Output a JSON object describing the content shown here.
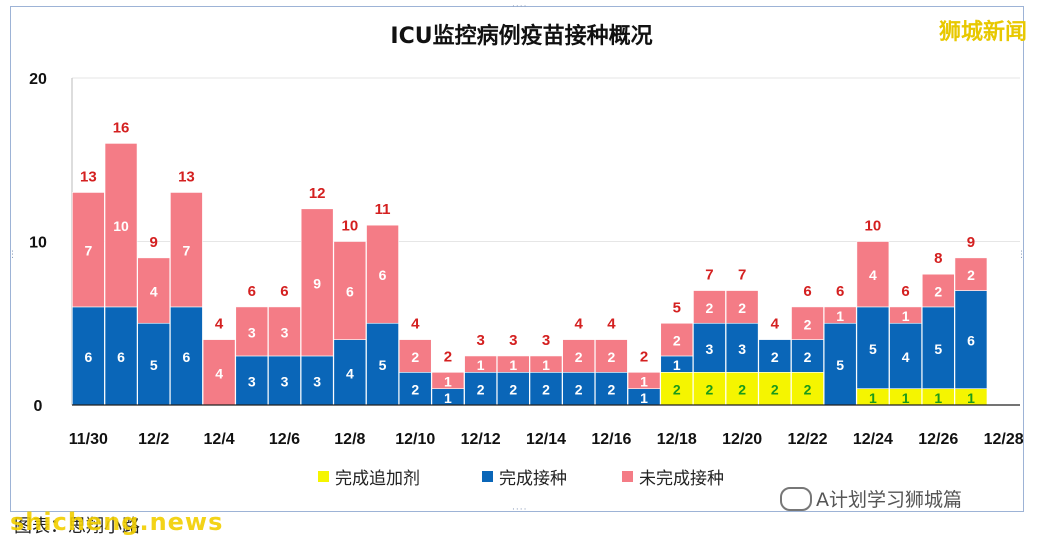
{
  "watermark_top": "狮城新闻",
  "brand_bottom": "shicheng.news",
  "source_label": "图表：思翔小路",
  "wechat_label": "A计划学习狮城篇",
  "colors": {
    "booster": "#f5f500",
    "vaccinated": "#0a66b8",
    "unvaccinated": "#f47c86",
    "total_label": "#d42020"
  },
  "chart_data": {
    "type": "bar",
    "stacked": true,
    "title": "ICU监控病例疫苗接种概况",
    "x": [
      "11/30",
      "12/1",
      "12/2",
      "12/3",
      "12/4",
      "12/5",
      "12/6",
      "12/7",
      "12/8",
      "12/9",
      "12/10",
      "12/11",
      "12/12",
      "12/13",
      "12/14",
      "12/15",
      "12/16",
      "12/17",
      "12/18",
      "12/19",
      "12/20",
      "12/21",
      "12/22",
      "12/23",
      "12/24",
      "12/25",
      "12/26",
      "12/27"
    ],
    "x_tick_labels": [
      "11/30",
      "12/2",
      "12/4",
      "12/6",
      "12/8",
      "12/10",
      "12/12",
      "12/14",
      "12/16",
      "12/18",
      "12/20",
      "12/22",
      "12/24",
      "12/26",
      "12/28"
    ],
    "y_ticks": [
      "0",
      "10",
      "20"
    ],
    "ylim": [
      0,
      20
    ],
    "series": [
      {
        "name": "完成追加剂",
        "color": "#f5f500",
        "values": [
          0,
          0,
          0,
          0,
          0,
          0,
          0,
          0,
          0,
          0,
          0,
          0,
          0,
          0,
          0,
          0,
          0,
          0,
          2,
          2,
          2,
          2,
          2,
          0,
          1,
          1,
          1,
          1
        ]
      },
      {
        "name": "完成接种",
        "color": "#0a66b8",
        "values": [
          6,
          6,
          5,
          6,
          0,
          3,
          3,
          3,
          4,
          5,
          2,
          1,
          2,
          2,
          2,
          2,
          2,
          1,
          1,
          3,
          3,
          2,
          2,
          5,
          5,
          4,
          5,
          6
        ]
      },
      {
        "name": "未完成接种",
        "color": "#f47c86",
        "values": [
          7,
          10,
          4,
          7,
          4,
          3,
          3,
          9,
          6,
          6,
          2,
          1,
          1,
          1,
          1,
          2,
          2,
          1,
          2,
          2,
          2,
          0,
          2,
          1,
          4,
          1,
          2,
          2
        ]
      }
    ],
    "totals": [
      13,
      16,
      9,
      13,
      4,
      6,
      6,
      12,
      10,
      11,
      4,
      2,
      3,
      3,
      3,
      4,
      4,
      2,
      5,
      7,
      7,
      4,
      6,
      6,
      10,
      6,
      8,
      9
    ],
    "legend_position": "bottom"
  }
}
